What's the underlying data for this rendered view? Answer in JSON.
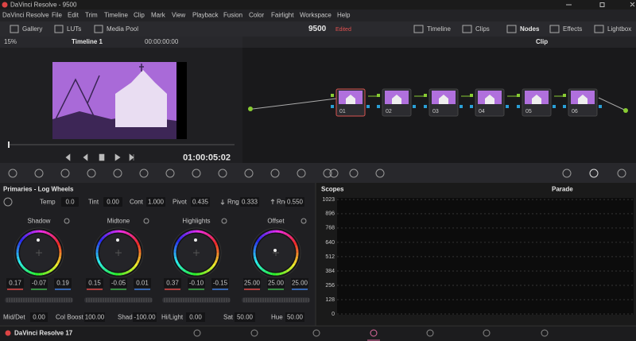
{
  "window": {
    "title": "DaVinci Resolve - 9500"
  },
  "menu": [
    "DaVinci Resolve",
    "File",
    "Edit",
    "Trim",
    "Timeline",
    "Clip",
    "Mark",
    "View",
    "Playback",
    "Fusion",
    "Color",
    "Fairlight",
    "Workspace",
    "Help"
  ],
  "toolbar": {
    "left": [
      "Gallery",
      "LUTs",
      "Media Pool"
    ],
    "project": "9500",
    "status": "Edited",
    "right": [
      "Timeline",
      "Clips",
      "Nodes",
      "Effects",
      "Lightbox"
    ]
  },
  "viewer": {
    "zoom": "15%",
    "timeline": "Timeline 1",
    "source_timecode": "00:00:00:00",
    "timecode": "01:00:05:02"
  },
  "nodes": {
    "mode": "Clip",
    "labels": [
      "01",
      "02",
      "03",
      "04",
      "05",
      "06"
    ]
  },
  "primaries": {
    "title": "Primaries - Log Wheels",
    "adjustments": [
      {
        "label": "Temp",
        "value": "0.0"
      },
      {
        "label": "Tint",
        "value": "0.00"
      },
      {
        "label": "Cont",
        "value": "1.000"
      },
      {
        "label": "Pivot",
        "value": "0.435"
      },
      {
        "label": "Rng",
        "value": "0.333"
      },
      {
        "label": "Rng",
        "value": "0.550"
      }
    ],
    "wheels": [
      {
        "name": "Shadow",
        "values": [
          "0.17",
          "-0.07",
          "0.19"
        ]
      },
      {
        "name": "Midtone",
        "values": [
          "0.15",
          "-0.05",
          "0.01"
        ]
      },
      {
        "name": "Highlights",
        "values": [
          "0.37",
          "-0.10",
          "-0.15"
        ]
      },
      {
        "name": "Offset",
        "values": [
          "25.00",
          "25.00",
          "25.00"
        ]
      }
    ],
    "controls": [
      {
        "label": "Mid/Det",
        "value": "0.00"
      },
      {
        "label": "Col Boost",
        "value": "100.00"
      },
      {
        "label": "Shad",
        "value": "-100.00"
      },
      {
        "label": "Hi/Light",
        "value": "0.00"
      },
      {
        "label": "Sat",
        "value": "50.00"
      },
      {
        "label": "Hue",
        "value": "50.00"
      }
    ]
  },
  "scopes": {
    "title": "Scopes",
    "mode": "Parade",
    "ylim": [
      0,
      1023
    ],
    "yticks": [
      0,
      128,
      256,
      384,
      512,
      640,
      768,
      896,
      1023
    ]
  },
  "footer": {
    "app": "DaVinci Resolve 17"
  }
}
